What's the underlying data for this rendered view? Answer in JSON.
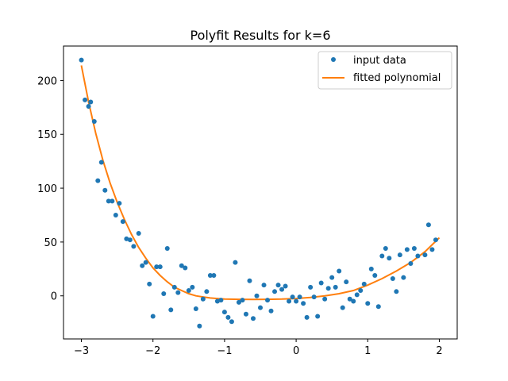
{
  "chart_data": {
    "type": "scatter",
    "title": "Polyfit Results for k=6",
    "xlabel": "",
    "ylabel": "",
    "xlim": [
      -3.25,
      2.25
    ],
    "ylim": [
      -40,
      232
    ],
    "xticks": [
      -3,
      -2,
      -1,
      0,
      1,
      2
    ],
    "yticks": [
      0,
      50,
      100,
      150,
      200
    ],
    "grid": false,
    "legend": "top-right",
    "series": [
      {
        "name": "input data",
        "kind": "scatter",
        "color": "#1f77b4",
        "points": [
          [
            -3.0,
            219
          ],
          [
            -2.95,
            182
          ],
          [
            -2.9,
            176
          ],
          [
            -2.87,
            180
          ],
          [
            -2.82,
            162
          ],
          [
            -2.77,
            107
          ],
          [
            -2.72,
            124
          ],
          [
            -2.67,
            98
          ],
          [
            -2.62,
            88
          ],
          [
            -2.57,
            88
          ],
          [
            -2.52,
            75
          ],
          [
            -2.47,
            86
          ],
          [
            -2.42,
            69
          ],
          [
            -2.37,
            53
          ],
          [
            -2.32,
            52
          ],
          [
            -2.27,
            46
          ],
          [
            -2.2,
            58
          ],
          [
            -2.15,
            28
          ],
          [
            -2.1,
            31
          ],
          [
            -2.05,
            11
          ],
          [
            -2.0,
            -19
          ],
          [
            -1.95,
            27
          ],
          [
            -1.9,
            27
          ],
          [
            -1.85,
            2
          ],
          [
            -1.8,
            44
          ],
          [
            -1.75,
            -13
          ],
          [
            -1.7,
            8
          ],
          [
            -1.65,
            3
          ],
          [
            -1.6,
            28
          ],
          [
            -1.55,
            26
          ],
          [
            -1.5,
            5
          ],
          [
            -1.45,
            8
          ],
          [
            -1.4,
            -12
          ],
          [
            -1.35,
            -28
          ],
          [
            -1.3,
            -3
          ],
          [
            -1.25,
            4
          ],
          [
            -1.2,
            19
          ],
          [
            -1.15,
            19
          ],
          [
            -1.1,
            -5
          ],
          [
            -1.05,
            -4
          ],
          [
            -1.0,
            -15
          ],
          [
            -0.95,
            -20
          ],
          [
            -0.9,
            -24
          ],
          [
            -0.85,
            31
          ],
          [
            -0.8,
            -6
          ],
          [
            -0.75,
            -4
          ],
          [
            -0.7,
            -17
          ],
          [
            -0.65,
            14
          ],
          [
            -0.6,
            -21
          ],
          [
            -0.55,
            0
          ],
          [
            -0.5,
            -11
          ],
          [
            -0.45,
            10
          ],
          [
            -0.4,
            -4
          ],
          [
            -0.35,
            -14
          ],
          [
            -0.3,
            4
          ],
          [
            -0.25,
            10
          ],
          [
            -0.2,
            6
          ],
          [
            -0.15,
            9
          ],
          [
            -0.1,
            -5
          ],
          [
            -0.05,
            -1
          ],
          [
            0.0,
            -5
          ],
          [
            0.05,
            -1
          ],
          [
            0.1,
            -7
          ],
          [
            0.15,
            -20
          ],
          [
            0.2,
            8
          ],
          [
            0.25,
            -1
          ],
          [
            0.3,
            -19
          ],
          [
            0.35,
            12
          ],
          [
            0.4,
            -3
          ],
          [
            0.45,
            7
          ],
          [
            0.5,
            17
          ],
          [
            0.55,
            8
          ],
          [
            0.6,
            23
          ],
          [
            0.65,
            -11
          ],
          [
            0.7,
            13
          ],
          [
            0.75,
            -3
          ],
          [
            0.8,
            -5
          ],
          [
            0.85,
            1
          ],
          [
            0.9,
            5
          ],
          [
            0.95,
            11
          ],
          [
            1.0,
            -7
          ],
          [
            1.05,
            25
          ],
          [
            1.1,
            19
          ],
          [
            1.15,
            -10
          ],
          [
            1.2,
            37
          ],
          [
            1.25,
            44
          ],
          [
            1.3,
            35
          ],
          [
            1.35,
            16
          ],
          [
            1.4,
            4
          ],
          [
            1.45,
            38
          ],
          [
            1.5,
            17
          ],
          [
            1.55,
            43
          ],
          [
            1.6,
            30
          ],
          [
            1.65,
            44
          ],
          [
            1.7,
            37
          ],
          [
            1.8,
            38
          ],
          [
            1.85,
            66
          ],
          [
            1.9,
            43
          ],
          [
            1.95,
            52
          ]
        ]
      },
      {
        "name": "fitted polynomial",
        "kind": "line",
        "color": "#ff7f0e",
        "points": [
          [
            -3.0,
            214
          ],
          [
            -2.9,
            180
          ],
          [
            -2.8,
            151
          ],
          [
            -2.7,
            126
          ],
          [
            -2.6,
            105
          ],
          [
            -2.5,
            87
          ],
          [
            -2.4,
            71
          ],
          [
            -2.3,
            57
          ],
          [
            -2.2,
            45
          ],
          [
            -2.1,
            35
          ],
          [
            -2.0,
            26
          ],
          [
            -1.9,
            19
          ],
          [
            -1.8,
            13
          ],
          [
            -1.7,
            8
          ],
          [
            -1.6,
            5
          ],
          [
            -1.5,
            2
          ],
          [
            -1.4,
            0
          ],
          [
            -1.3,
            -1
          ],
          [
            -1.2,
            -2
          ],
          [
            -1.1,
            -2.5
          ],
          [
            -1.0,
            -3
          ],
          [
            -0.8,
            -3.2
          ],
          [
            -0.6,
            -3.3
          ],
          [
            -0.4,
            -3.2
          ],
          [
            -0.2,
            -3
          ],
          [
            0.0,
            -2.5
          ],
          [
            0.2,
            -1.5
          ],
          [
            0.4,
            0
          ],
          [
            0.6,
            2
          ],
          [
            0.8,
            5
          ],
          [
            1.0,
            10
          ],
          [
            1.2,
            16
          ],
          [
            1.4,
            23
          ],
          [
            1.6,
            31
          ],
          [
            1.8,
            41
          ],
          [
            2.0,
            54
          ]
        ]
      }
    ]
  }
}
